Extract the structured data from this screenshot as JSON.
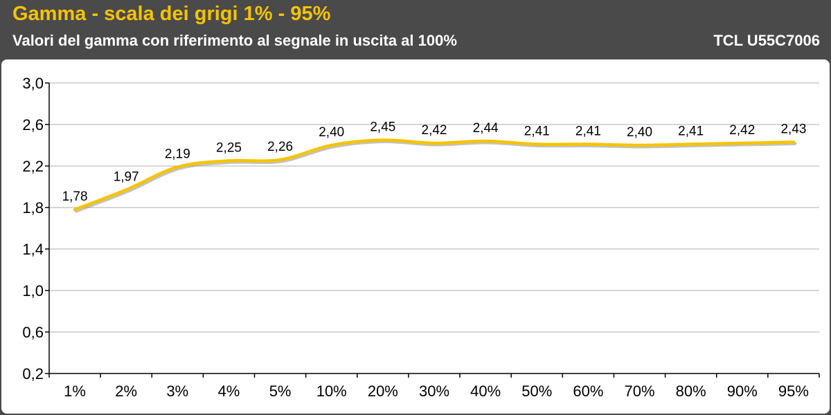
{
  "header": {
    "title": "Gamma - scala dei grigi 1% - 95%",
    "subtitle": "Valori del gamma con riferimento al segnale in uscita al 100%",
    "model": "TCL U55C7006"
  },
  "colors": {
    "title": "#f5c400",
    "line": "#f5c400",
    "line_shadow": "#9a9a9a",
    "background": "#4a4a4a",
    "grid": "#c8c8c8"
  },
  "chart_data": {
    "type": "line",
    "title": "Gamma - scala dei grigi 1% - 95%",
    "subtitle": "Valori del gamma con riferimento al segnale in uscita al 100%",
    "categories": [
      "1%",
      "2%",
      "3%",
      "4%",
      "5%",
      "10%",
      "20%",
      "30%",
      "40%",
      "50%",
      "60%",
      "70%",
      "80%",
      "90%",
      "95%"
    ],
    "series": [
      {
        "values": [
          1.78,
          1.97,
          2.19,
          2.25,
          2.26,
          2.4,
          2.45,
          2.42,
          2.44,
          2.41,
          2.41,
          2.4,
          2.41,
          2.42,
          2.43
        ],
        "labels": [
          "1,78",
          "1,97",
          "2,19",
          "2,25",
          "2,26",
          "2,40",
          "2,45",
          "2,42",
          "2,44",
          "2,41",
          "2,41",
          "2,40",
          "2,41",
          "2,42",
          "2,43"
        ]
      }
    ],
    "yticks": [
      0.2,
      0.6,
      1.0,
      1.4,
      1.8,
      2.2,
      2.6,
      3.0
    ],
    "ytick_labels": [
      "0,2",
      "0,6",
      "1,0",
      "1,4",
      "1,8",
      "2,2",
      "2,6",
      "3,0"
    ],
    "ylim": [
      0.2,
      3.0
    ],
    "grid": true,
    "smooth": true,
    "legend": "none",
    "xlabel": "",
    "ylabel": ""
  }
}
